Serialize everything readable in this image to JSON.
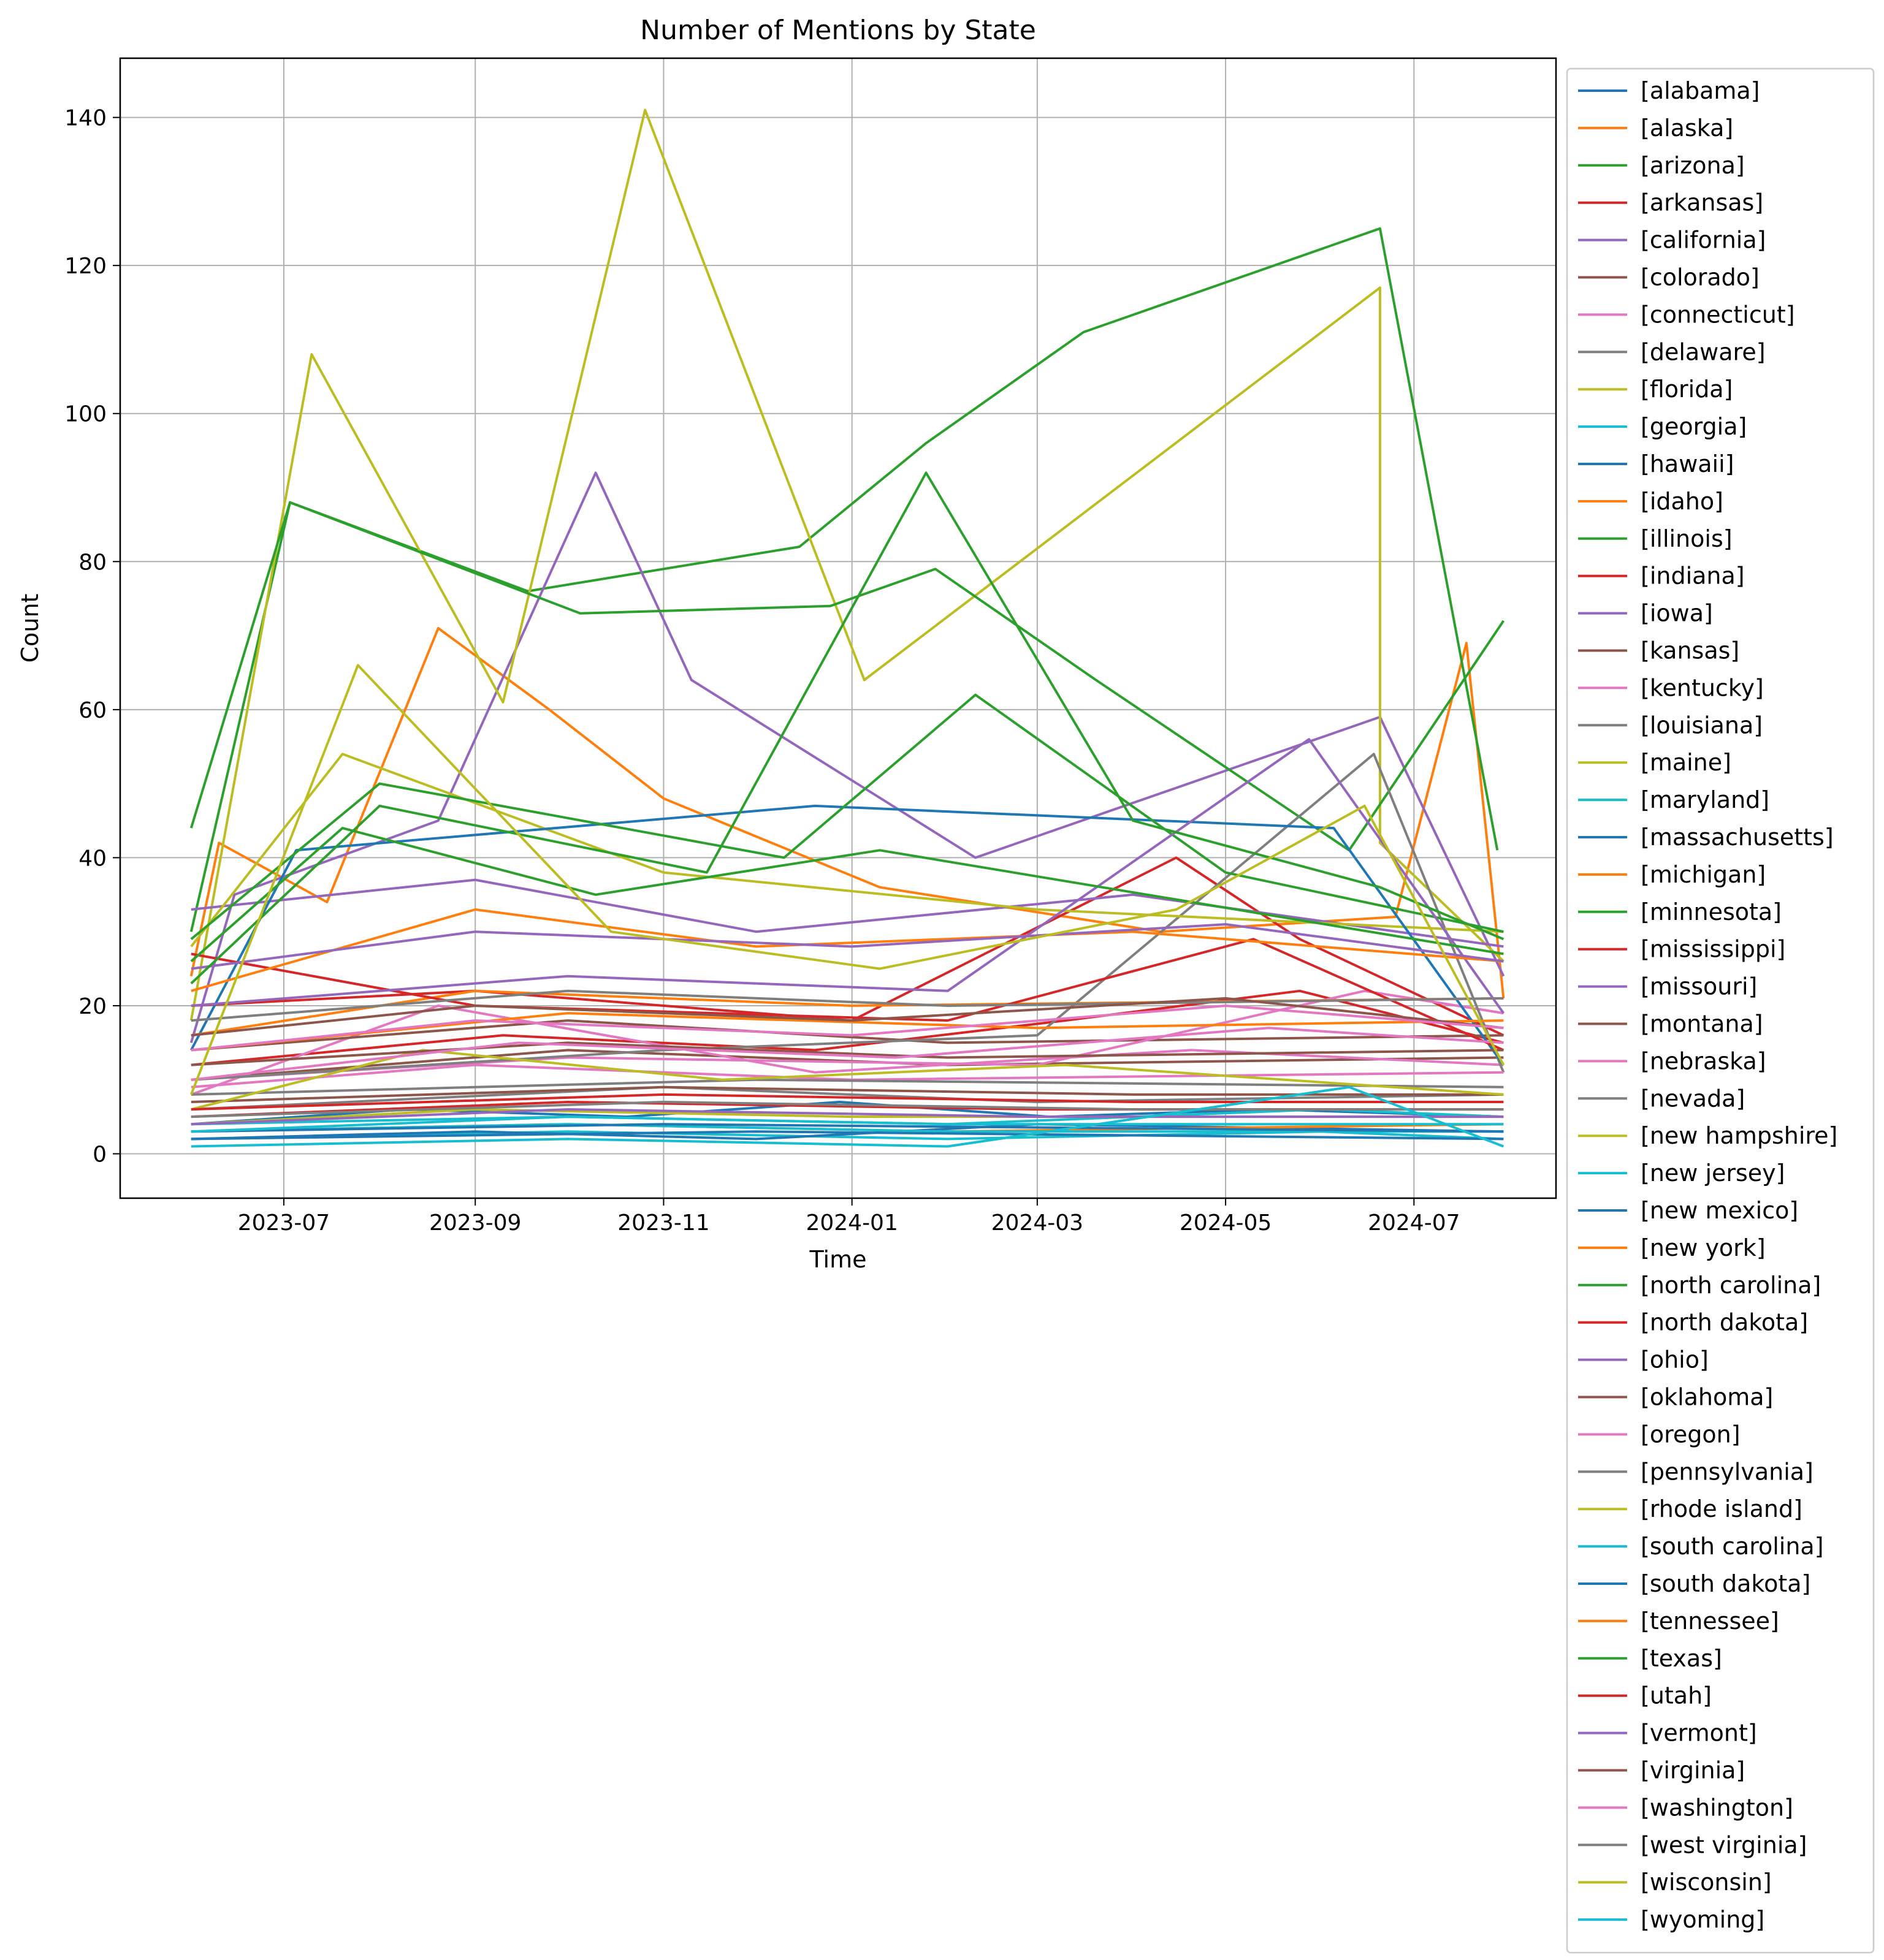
{
  "chart_data": {
    "type": "line",
    "title": "Number of Mentions by State",
    "xlabel": "Time",
    "ylabel": "Count",
    "xlim": [
      "2023-05-09",
      "2024-08-16"
    ],
    "ylim": [
      -6,
      148
    ],
    "x_ticks": [
      "2023-07",
      "2023-09",
      "2023-11",
      "2024-01",
      "2024-03",
      "2024-05",
      "2024-07"
    ],
    "y_ticks": [
      0,
      20,
      40,
      60,
      80,
      100,
      120,
      140
    ],
    "grid": true,
    "legend_position": "outside-right",
    "series": [
      {
        "name": "[alabama]",
        "color": "#1f77b4",
        "x": [
          "2023-06-01",
          "2023-08-10",
          "2023-10-20",
          "2023-12-28",
          "2024-03-05",
          "2024-05-15",
          "2024-07-30"
        ],
        "y": [
          4,
          6,
          5,
          7,
          5,
          6,
          5
        ]
      },
      {
        "name": "[alaska]",
        "color": "#ff7f0e",
        "x": [
          "2023-06-01",
          "2023-06-10",
          "2023-07-15",
          "2023-08-20",
          "2023-09-25",
          "2023-11-01",
          "2024-01-10",
          "2024-04-10",
          "2024-06-25",
          "2024-07-18",
          "2024-07-30"
        ],
        "y": [
          24,
          42,
          34,
          71,
          60,
          48,
          36,
          30,
          32,
          69,
          21
        ]
      },
      {
        "name": "[arizona]",
        "color": "#2ca02c",
        "x": [
          "2023-06-01",
          "2023-07-03",
          "2023-09-18",
          "2023-12-15",
          "2024-01-25",
          "2024-03-16",
          "2024-06-20",
          "2024-07-28"
        ],
        "y": [
          30,
          88,
          76,
          82,
          96,
          111,
          125,
          41
        ]
      },
      {
        "name": "[arkansas]",
        "color": "#d62728",
        "x": [
          "2023-06-01",
          "2023-09-10",
          "2023-12-20",
          "2024-03-10",
          "2024-05-25",
          "2024-07-30"
        ],
        "y": [
          12,
          16,
          14,
          18,
          22,
          15
        ]
      },
      {
        "name": "[california]",
        "color": "#9467bd",
        "x": [
          "2023-06-01",
          "2023-06-15",
          "2023-08-20",
          "2023-10-10",
          "2023-11-10",
          "2024-02-10",
          "2024-06-20",
          "2024-07-30"
        ],
        "y": [
          15,
          35,
          45,
          92,
          64,
          40,
          59,
          24
        ]
      },
      {
        "name": "[colorado]",
        "color": "#8c564b",
        "x": [
          "2023-06-01",
          "2023-10-01",
          "2024-02-01",
          "2024-07-30"
        ],
        "y": [
          10,
          14,
          12,
          13
        ]
      },
      {
        "name": "[connecticut]",
        "color": "#e377c2",
        "x": [
          "2023-06-01",
          "2023-08-20",
          "2023-12-20",
          "2024-04-20",
          "2024-07-30"
        ],
        "y": [
          8,
          20,
          11,
          14,
          12
        ]
      },
      {
        "name": "[delaware]",
        "color": "#7f7f7f",
        "x": [
          "2023-06-01",
          "2023-11-01",
          "2024-03-01",
          "2024-07-30"
        ],
        "y": [
          6,
          9,
          7,
          8
        ]
      },
      {
        "name": "[florida]",
        "color": "#bcbd22",
        "x": [
          "2023-06-01",
          "2023-07-10",
          "2023-09-10",
          "2023-10-26",
          "2024-01-05",
          "2024-06-20",
          "2024-06-20",
          "2024-07-30"
        ],
        "y": [
          18,
          108,
          61,
          141,
          64,
          117,
          42,
          26
        ]
      },
      {
        "name": "[georgia]",
        "color": "#17becf",
        "x": [
          "2023-06-01",
          "2023-10-01",
          "2024-02-01",
          "2024-06-01",
          "2024-07-30"
        ],
        "y": [
          2,
          3,
          2,
          3,
          2
        ]
      },
      {
        "name": "[hawaii]",
        "color": "#1f77b4",
        "x": [
          "2023-06-01",
          "2023-09-01",
          "2023-12-01",
          "2024-03-01",
          "2024-07-30"
        ],
        "y": [
          2,
          3,
          2,
          4,
          3
        ]
      },
      {
        "name": "[idaho]",
        "color": "#ff7f0e",
        "x": [
          "2023-06-01",
          "2023-10-01",
          "2024-02-01",
          "2024-07-30"
        ],
        "y": [
          3,
          4,
          3,
          4
        ]
      },
      {
        "name": "[illinois]",
        "color": "#2ca02c",
        "x": [
          "2023-06-01",
          "2023-07-03",
          "2023-10-05",
          "2023-12-25",
          "2024-01-28",
          "2024-03-20",
          "2024-06-10",
          "2024-07-30"
        ],
        "y": [
          44,
          88,
          73,
          74,
          79,
          64,
          41,
          72
        ]
      },
      {
        "name": "[indiana]",
        "color": "#d62728",
        "x": [
          "2023-06-01",
          "2023-09-01",
          "2024-01-01",
          "2024-04-15",
          "2024-05-25",
          "2024-07-30"
        ],
        "y": [
          20,
          22,
          18,
          40,
          29,
          16
        ]
      },
      {
        "name": "[iowa]",
        "color": "#9467bd",
        "x": [
          "2023-06-01",
          "2023-09-01",
          "2023-12-01",
          "2024-04-01",
          "2024-07-30"
        ],
        "y": [
          33,
          37,
          30,
          35,
          28
        ]
      },
      {
        "name": "[kansas]",
        "color": "#8c564b",
        "x": [
          "2023-06-01",
          "2023-10-01",
          "2024-02-01",
          "2024-07-30"
        ],
        "y": [
          14,
          18,
          15,
          16
        ]
      },
      {
        "name": "[kentucky]",
        "color": "#e377c2",
        "x": [
          "2023-06-01",
          "2023-10-01",
          "2024-03-01",
          "2024-06-15",
          "2024-07-30"
        ],
        "y": [
          10,
          13,
          12,
          22,
          19
        ]
      },
      {
        "name": "[louisiana]",
        "color": "#7f7f7f",
        "x": [
          "2023-06-01",
          "2023-11-01",
          "2024-03-01",
          "2024-06-18",
          "2024-07-30"
        ],
        "y": [
          10,
          14,
          16,
          54,
          11
        ]
      },
      {
        "name": "[maine]",
        "color": "#bcbd22",
        "x": [
          "2023-06-01",
          "2023-07-20",
          "2023-11-01",
          "2024-03-01",
          "2024-07-30"
        ],
        "y": [
          28,
          54,
          38,
          33,
          30
        ]
      },
      {
        "name": "[maryland]",
        "color": "#17becf",
        "x": [
          "2023-06-01",
          "2023-10-01",
          "2024-02-01",
          "2024-07-30"
        ],
        "y": [
          3,
          4,
          3,
          3
        ]
      },
      {
        "name": "[massachusetts]",
        "color": "#1f77b4",
        "x": [
          "2023-06-01",
          "2023-07-05",
          "2023-12-20",
          "2024-06-05",
          "2024-07-30"
        ],
        "y": [
          14,
          41,
          47,
          44,
          12
        ]
      },
      {
        "name": "[michigan]",
        "color": "#ff7f0e",
        "x": [
          "2023-06-01",
          "2023-09-01",
          "2024-01-01",
          "2024-07-30"
        ],
        "y": [
          16,
          22,
          20,
          21
        ]
      },
      {
        "name": "[minnesota]",
        "color": "#2ca02c",
        "x": [
          "2023-06-01",
          "2023-08-01",
          "2023-12-10",
          "2024-02-10",
          "2024-05-01",
          "2024-07-30"
        ],
        "y": [
          29,
          50,
          40,
          62,
          38,
          30
        ]
      },
      {
        "name": "[mississippi]",
        "color": "#d62728",
        "x": [
          "2023-06-01",
          "2023-09-01",
          "2024-02-01",
          "2024-05-10",
          "2024-07-30"
        ],
        "y": [
          27,
          20,
          18,
          29,
          14
        ]
      },
      {
        "name": "[missouri]",
        "color": "#9467bd",
        "x": [
          "2023-06-01",
          "2023-10-01",
          "2024-02-01",
          "2024-05-28",
          "2024-07-30"
        ],
        "y": [
          20,
          24,
          22,
          56,
          19
        ]
      },
      {
        "name": "[montana]",
        "color": "#8c564b",
        "x": [
          "2023-06-01",
          "2023-11-01",
          "2024-04-01",
          "2024-07-30"
        ],
        "y": [
          7,
          9,
          8,
          8
        ]
      },
      {
        "name": "[nebraska]",
        "color": "#e377c2",
        "x": [
          "2023-06-01",
          "2023-09-01",
          "2024-01-01",
          "2024-07-30"
        ],
        "y": [
          9,
          12,
          10,
          11
        ]
      },
      {
        "name": "[nevada]",
        "color": "#7f7f7f",
        "x": [
          "2023-06-01",
          "2023-12-01",
          "2024-07-30"
        ],
        "y": [
          8,
          10,
          9
        ]
      },
      {
        "name": "[new hampshire]",
        "color": "#bcbd22",
        "x": [
          "2023-06-01",
          "2023-08-15",
          "2023-11-20",
          "2024-03-10",
          "2024-07-30"
        ],
        "y": [
          6,
          14,
          10,
          12,
          8
        ]
      },
      {
        "name": "[new jersey]",
        "color": "#17becf",
        "x": [
          "2023-06-01",
          "2023-10-01",
          "2024-02-01",
          "2024-06-01",
          "2024-07-30"
        ],
        "y": [
          4,
          5,
          4,
          6,
          5
        ]
      },
      {
        "name": "[new mexico]",
        "color": "#1f77b4",
        "x": [
          "2023-06-01",
          "2023-11-01",
          "2024-07-30"
        ],
        "y": [
          3,
          4,
          3
        ]
      },
      {
        "name": "[new york]",
        "color": "#ff7f0e",
        "x": [
          "2023-06-01",
          "2023-09-01",
          "2023-12-01",
          "2024-04-01",
          "2024-07-30"
        ],
        "y": [
          22,
          33,
          28,
          30,
          26
        ]
      },
      {
        "name": "[north carolina]",
        "color": "#2ca02c",
        "x": [
          "2023-06-01",
          "2023-07-20",
          "2023-10-10",
          "2024-01-10",
          "2024-04-20",
          "2024-07-30"
        ],
        "y": [
          26,
          44,
          35,
          41,
          34,
          27
        ]
      },
      {
        "name": "[north dakota]",
        "color": "#d62728",
        "x": [
          "2023-06-01",
          "2023-10-01",
          "2024-03-01",
          "2024-07-30"
        ],
        "y": [
          5,
          7,
          6,
          6
        ]
      },
      {
        "name": "[ohio]",
        "color": "#9467bd",
        "x": [
          "2023-06-01",
          "2023-09-01",
          "2024-01-01",
          "2024-05-01",
          "2024-07-30"
        ],
        "y": [
          25,
          30,
          28,
          31,
          26
        ]
      },
      {
        "name": "[oklahoma]",
        "color": "#8c564b",
        "x": [
          "2023-06-01",
          "2023-10-01",
          "2024-02-01",
          "2024-07-30"
        ],
        "y": [
          12,
          15,
          13,
          14
        ]
      },
      {
        "name": "[oregon]",
        "color": "#e377c2",
        "x": [
          "2023-06-01",
          "2023-09-15",
          "2024-01-15",
          "2024-05-15",
          "2024-07-30"
        ],
        "y": [
          10,
          15,
          13,
          17,
          15
        ]
      },
      {
        "name": "[pennsylvania]",
        "color": "#7f7f7f",
        "x": [
          "2023-06-01",
          "2023-10-01",
          "2024-02-01",
          "2024-07-30"
        ],
        "y": [
          18,
          22,
          20,
          21
        ]
      },
      {
        "name": "[rhode island]",
        "color": "#bcbd22",
        "x": [
          "2023-06-01",
          "2023-09-01",
          "2024-01-01",
          "2024-07-30"
        ],
        "y": [
          4,
          6,
          5,
          5
        ]
      },
      {
        "name": "[south carolina]",
        "color": "#17becf",
        "x": [
          "2023-06-01",
          "2023-10-01",
          "2024-02-01",
          "2024-07-30"
        ],
        "y": [
          3,
          5,
          4,
          4
        ]
      },
      {
        "name": "[south dakota]",
        "color": "#1f77b4",
        "x": [
          "2023-06-01",
          "2023-12-01",
          "2024-07-30"
        ],
        "y": [
          2,
          3,
          2
        ]
      },
      {
        "name": "[tennessee]",
        "color": "#ff7f0e",
        "x": [
          "2023-06-01",
          "2023-10-01",
          "2024-03-01",
          "2024-07-30"
        ],
        "y": [
          14,
          19,
          17,
          18
        ]
      },
      {
        "name": "[texas]",
        "color": "#2ca02c",
        "x": [
          "2023-06-01",
          "2023-08-01",
          "2023-11-15",
          "2024-01-25",
          "2024-04-01",
          "2024-06-20",
          "2024-07-30"
        ],
        "y": [
          23,
          47,
          38,
          92,
          45,
          36,
          29
        ]
      },
      {
        "name": "[utah]",
        "color": "#d62728",
        "x": [
          "2023-06-01",
          "2023-11-01",
          "2024-04-01",
          "2024-07-30"
        ],
        "y": [
          6,
          8,
          7,
          7
        ]
      },
      {
        "name": "[vermont]",
        "color": "#9467bd",
        "x": [
          "2023-06-01",
          "2023-10-01",
          "2024-03-01",
          "2024-07-30"
        ],
        "y": [
          4,
          6,
          5,
          5
        ]
      },
      {
        "name": "[virginia]",
        "color": "#8c564b",
        "x": [
          "2023-06-01",
          "2023-09-01",
          "2024-01-01",
          "2024-05-01",
          "2024-07-30"
        ],
        "y": [
          16,
          20,
          18,
          21,
          17
        ]
      },
      {
        "name": "[washington]",
        "color": "#e377c2",
        "x": [
          "2023-06-01",
          "2023-09-01",
          "2024-01-01",
          "2024-05-01",
          "2024-07-30"
        ],
        "y": [
          14,
          18,
          16,
          20,
          17
        ]
      },
      {
        "name": "[west virginia]",
        "color": "#7f7f7f",
        "x": [
          "2023-06-01",
          "2023-11-01",
          "2024-04-01",
          "2024-07-30"
        ],
        "y": [
          5,
          7,
          6,
          6
        ]
      },
      {
        "name": "[wisconsin]",
        "color": "#bcbd22",
        "x": [
          "2023-06-01",
          "2023-07-25",
          "2023-10-15",
          "2024-01-10",
          "2024-04-15",
          "2024-06-15",
          "2024-07-30"
        ],
        "y": [
          8,
          66,
          30,
          25,
          33,
          47,
          12
        ]
      },
      {
        "name": "[wyoming]",
        "color": "#17becf",
        "x": [
          "2023-06-01",
          "2023-10-01",
          "2024-02-01",
          "2024-06-10",
          "2024-07-30"
        ],
        "y": [
          1,
          2,
          1,
          9,
          1
        ]
      }
    ]
  }
}
